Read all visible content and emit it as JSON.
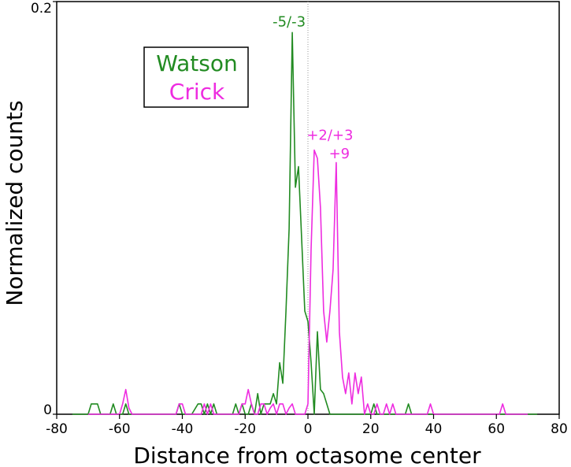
{
  "chart_data": {
    "type": "line",
    "title": "",
    "xlabel": "Distance from octasome center",
    "ylabel": "Normalized counts",
    "xlim": [
      -80,
      80
    ],
    "ylim": [
      0,
      0.2
    ],
    "x_ticks": [
      -80,
      -60,
      -40,
      -20,
      0,
      20,
      40,
      60,
      80
    ],
    "y_ticks": [
      0,
      0.2
    ],
    "y_tick_labels": [
      "0",
      "0.2"
    ],
    "grid": false,
    "center_line_x": 0,
    "legend": {
      "placement": "top-left",
      "entries": [
        {
          "label": "Watson",
          "color": "#228B22"
        },
        {
          "label": "Crick",
          "color": "#EE2CE0"
        }
      ]
    },
    "annotations": [
      {
        "text": "-5/-3",
        "x": -6,
        "y": 0.188,
        "color": "#228B22"
      },
      {
        "text": "+2/+3",
        "x": 7,
        "y": 0.133,
        "color": "#EE2CE0"
      },
      {
        "text": "+9",
        "x": 10,
        "y": 0.124,
        "color": "#EE2CE0"
      }
    ],
    "series": [
      {
        "name": "Watson",
        "color": "#228B22",
        "x": [
          -75,
          -70,
          -69,
          -68,
          -67,
          -66,
          -65,
          -64,
          -63,
          -62,
          -61,
          -60,
          -59,
          -58,
          -57,
          -56,
          -55,
          -50,
          -45,
          -42,
          -41,
          -40,
          -39,
          -38,
          -37,
          -35,
          -34,
          -33,
          -32,
          -31,
          -30,
          -29,
          -28,
          -27,
          -26,
          -25,
          -24,
          -23,
          -22,
          -21,
          -20,
          -19,
          -18,
          -17,
          -16,
          -15,
          -14,
          -13,
          -12,
          -11,
          -10,
          -9,
          -8,
          -7,
          -6,
          -5,
          -4,
          -3,
          -2,
          -1,
          0,
          1,
          2,
          3,
          4,
          5,
          6,
          7,
          8,
          9,
          10,
          11,
          12,
          13,
          14,
          15,
          16,
          17,
          18,
          19,
          20,
          21,
          22,
          23,
          24,
          25,
          26,
          27,
          28,
          29,
          30,
          31,
          32,
          33,
          34,
          35,
          40,
          45,
          50,
          55,
          60,
          65,
          70,
          73
        ],
        "y": [
          0,
          0,
          0.005,
          0.005,
          0.005,
          0,
          0,
          0,
          0,
          0.005,
          0,
          0,
          0,
          0.005,
          0,
          0,
          0,
          0,
          0,
          0,
          0.005,
          0,
          0,
          0,
          0,
          0.005,
          0.005,
          0,
          0.005,
          0,
          0.005,
          0,
          0,
          0,
          0,
          0,
          0,
          0.005,
          0,
          0.005,
          0,
          0,
          0.005,
          0,
          0.01,
          0,
          0.005,
          0.005,
          0.005,
          0.01,
          0.005,
          0.025,
          0.015,
          0.05,
          0.09,
          0.185,
          0.11,
          0.12,
          0.085,
          0.05,
          0.045,
          0.025,
          0,
          0.04,
          0.012,
          0.01,
          0.005,
          0,
          0,
          0,
          0,
          0,
          0,
          0,
          0,
          0,
          0,
          0,
          0,
          0,
          0,
          0.005,
          0,
          0,
          0,
          0,
          0,
          0,
          0,
          0,
          0,
          0,
          0.005,
          0,
          0,
          0,
          0,
          0,
          0,
          0,
          0,
          0,
          0,
          0
        ]
      },
      {
        "name": "Crick",
        "color": "#EE2CE0",
        "x": [
          -70,
          -60,
          -59,
          -58,
          -57,
          -56,
          -45,
          -42,
          -41,
          -40,
          -39,
          -38,
          -35,
          -34,
          -33,
          -32,
          -31,
          -30,
          -25,
          -22,
          -21,
          -20,
          -19,
          -18,
          -17,
          -16,
          -15,
          -14,
          -13,
          -12,
          -11,
          -10,
          -9,
          -8,
          -7,
          -6,
          -5,
          -4,
          -3,
          -2,
          -1,
          0,
          1,
          2,
          3,
          4,
          5,
          6,
          7,
          8,
          9,
          10,
          11,
          12,
          13,
          14,
          15,
          16,
          17,
          18,
          19,
          20,
          21,
          22,
          23,
          24,
          25,
          26,
          27,
          28,
          29,
          30,
          35,
          38,
          39,
          40,
          45,
          55,
          60,
          61,
          62,
          63,
          65,
          70
        ],
        "y": [
          0,
          0,
          0.005,
          0.012,
          0.003,
          0,
          0,
          0,
          0.005,
          0.005,
          0,
          0,
          0,
          0,
          0.005,
          0,
          0.005,
          0,
          0,
          0,
          0.005,
          0.005,
          0.012,
          0.005,
          0,
          0,
          0.005,
          0.005,
          0,
          0.003,
          0.005,
          0,
          0.005,
          0.005,
          0,
          0.003,
          0.005,
          0,
          0,
          0,
          0,
          0.005,
          0.08,
          0.128,
          0.124,
          0.1,
          0.05,
          0.035,
          0.05,
          0.07,
          0.122,
          0.04,
          0.018,
          0.01,
          0.02,
          0.005,
          0.02,
          0.01,
          0.018,
          0,
          0.005,
          0,
          0,
          0.005,
          0,
          0,
          0.005,
          0,
          0.005,
          0,
          0,
          0,
          0,
          0,
          0.005,
          0,
          0,
          0,
          0,
          0,
          0.005,
          0,
          0,
          0
        ]
      }
    ]
  }
}
